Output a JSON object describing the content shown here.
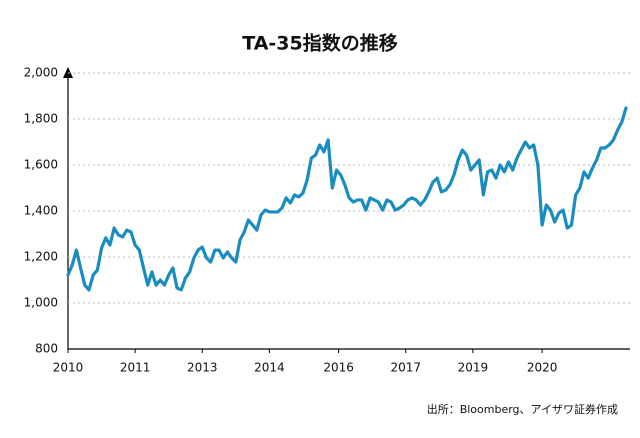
{
  "chart_data": {
    "type": "line",
    "title": "TA-35指数の推移",
    "source": "出所：Bloomberg、アイザワ証券作成",
    "color": "#1a8cc0",
    "grid": true,
    "values": [
      1122,
      1165,
      1230,
      1152,
      1078,
      1057,
      1122,
      1143,
      1239,
      1283,
      1252,
      1326,
      1296,
      1287,
      1317,
      1309,
      1252,
      1230,
      1152,
      1078,
      1135,
      1078,
      1100,
      1078,
      1122,
      1152,
      1065,
      1057,
      1109,
      1135,
      1196,
      1230,
      1243,
      1196,
      1178,
      1230,
      1230,
      1196,
      1222,
      1196,
      1178,
      1274,
      1309,
      1361,
      1339,
      1317,
      1383,
      1404,
      1396,
      1396,
      1396,
      1413,
      1457,
      1435,
      1470,
      1461,
      1478,
      1535,
      1630,
      1643,
      1687,
      1657,
      1709,
      1500,
      1578,
      1557,
      1513,
      1457,
      1439,
      1448,
      1448,
      1404,
      1457,
      1448,
      1439,
      1404,
      1448,
      1439,
      1404,
      1413,
      1426,
      1448,
      1457,
      1448,
      1426,
      1448,
      1483,
      1526,
      1543,
      1483,
      1491,
      1513,
      1557,
      1622,
      1665,
      1643,
      1578,
      1600,
      1622,
      1470,
      1570,
      1578,
      1543,
      1600,
      1570,
      1613,
      1578,
      1630,
      1665,
      1700,
      1674,
      1687,
      1600,
      1339,
      1426,
      1404,
      1352,
      1391,
      1404,
      1326,
      1339,
      1470,
      1500,
      1570,
      1543,
      1587,
      1622,
      1674,
      1674,
      1687,
      1709,
      1752,
      1787,
      1848
    ],
    "xlim": [
      0,
      133
    ],
    "xticks": [
      {
        "value": 0,
        "label": "2010"
      },
      {
        "value": 16,
        "label": "2011"
      },
      {
        "value": 32,
        "label": "2013"
      },
      {
        "value": 48,
        "label": "2014"
      },
      {
        "value": 64.5,
        "label": "2016"
      },
      {
        "value": 80.5,
        "label": "2017"
      },
      {
        "value": 96.5,
        "label": "2019"
      },
      {
        "value": 113,
        "label": "2020"
      }
    ],
    "ylim": [
      800,
      2000
    ],
    "yticks": [
      800,
      {
        "value": 1000,
        "label": "1,000"
      },
      {
        "value": 1200,
        "label": "1,200"
      },
      {
        "value": 1400,
        "label": "1,400"
      },
      {
        "value": 1600,
        "label": "1,600"
      },
      {
        "value": 1800,
        "label": "1,800"
      },
      {
        "value": 2000,
        "label": "2,000"
      }
    ]
  }
}
